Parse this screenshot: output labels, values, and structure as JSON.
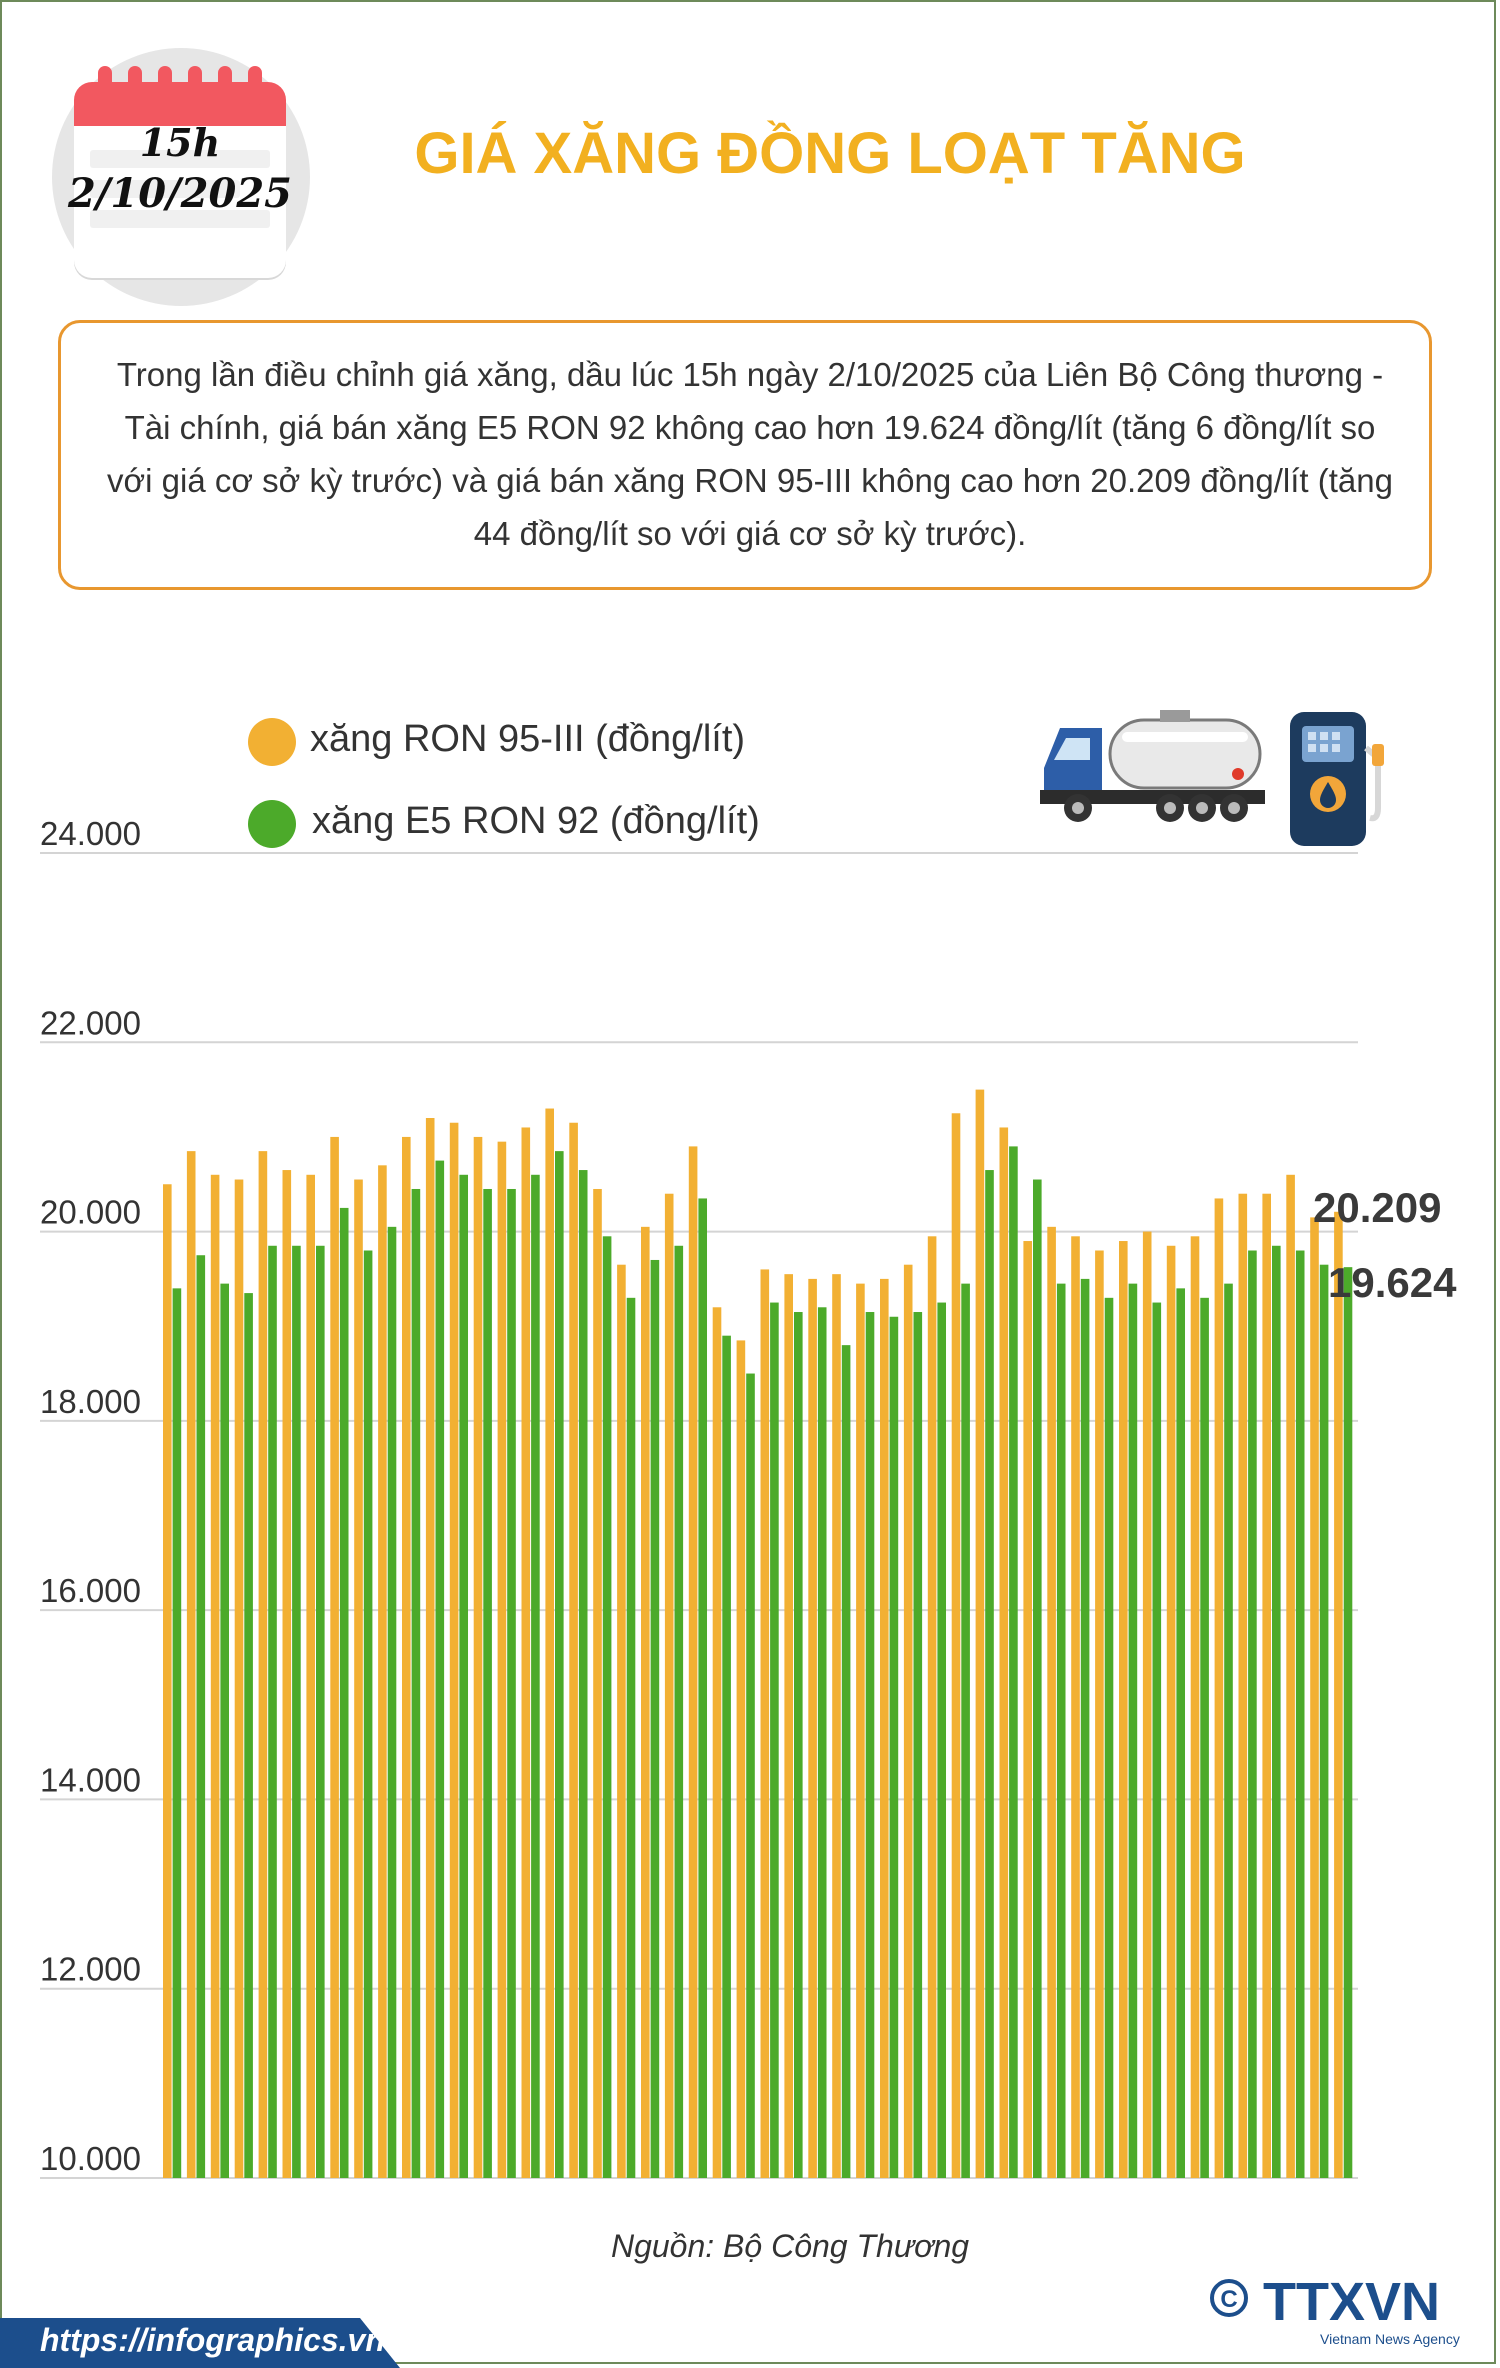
{
  "header": {
    "calendar_hour": "15h",
    "calendar_date": "2/10/2025",
    "title": "GIÁ XĂNG ĐỒNG LOẠT TĂNG"
  },
  "intro": {
    "lines": [
      "Trong lần điều chỉnh giá xăng, dầu lúc 15h ngày 2/10/2025 của Liên Bộ Công thương -",
      "Tài chính, giá bán xăng E5 RON 92 không cao hơn 19.624 đồng/lít (tăng 6 đồng/lít so",
      "với giá cơ sở kỳ trước) và giá bán xăng RON 95-III không cao hơn 20.209 đồng/lít (tăng",
      "44 đồng/lít so với giá cơ sở kỳ trước)."
    ]
  },
  "colors": {
    "accent": "#f2b020",
    "ron95": "#f2b033",
    "e5": "#4caa2a",
    "border": "#e8972f",
    "footer": "#1c4e8c"
  },
  "icons": [
    "tanker-truck-icon",
    "fuel-pump-icon",
    "copyright-icon"
  ],
  "source": "Nguồn: Bộ Công Thương",
  "footer": {
    "url": "https://infographics.vn",
    "logo_text": "TTXVN",
    "logo_subtitle": "Vietnam News Agency"
  },
  "chart_data": {
    "type": "bar",
    "ylim": [
      10000,
      24000
    ],
    "yticks": [
      "10.000",
      "12.000",
      "14.000",
      "16.000",
      "18.000",
      "20.000",
      "22.000",
      "24.000"
    ],
    "legend_position": "top-left",
    "grid": true,
    "series": [
      {
        "name": "xăng RON 95-III (đồng/lít)",
        "color": "#f2b033",
        "values": [
          20500,
          20850,
          20600,
          20550,
          20850,
          20650,
          20600,
          21000,
          20550,
          20700,
          21000,
          21200,
          21150,
          21000,
          20950,
          21100,
          21300,
          21150,
          20450,
          19650,
          20050,
          20400,
          20900,
          19200,
          18850,
          19600,
          19550,
          19500,
          19550,
          19450,
          19500,
          19650,
          19950,
          21250,
          21500,
          21100,
          19900,
          20050,
          19950,
          19800,
          19900,
          20000,
          19850,
          19950,
          20350,
          20400,
          20400,
          20600,
          20150,
          20209
        ]
      },
      {
        "name": "xăng E5 RON 92 (đồng/lít)",
        "color": "#4caa2a",
        "values": [
          19400,
          19750,
          19450,
          19350,
          19850,
          19850,
          19850,
          20250,
          19800,
          20050,
          20450,
          20750,
          20600,
          20450,
          20450,
          20600,
          20850,
          20650,
          19950,
          19300,
          19700,
          19850,
          20350,
          18900,
          18500,
          19250,
          19150,
          19200,
          18800,
          19150,
          19100,
          19150,
          19250,
          19450,
          20650,
          20900,
          20550,
          19450,
          19500,
          19300,
          19450,
          19250,
          19400,
          19300,
          19450,
          19800,
          19850,
          19800,
          19650,
          19624
        ]
      }
    ],
    "last_values_labels": [
      "20.209",
      "19.624"
    ]
  }
}
